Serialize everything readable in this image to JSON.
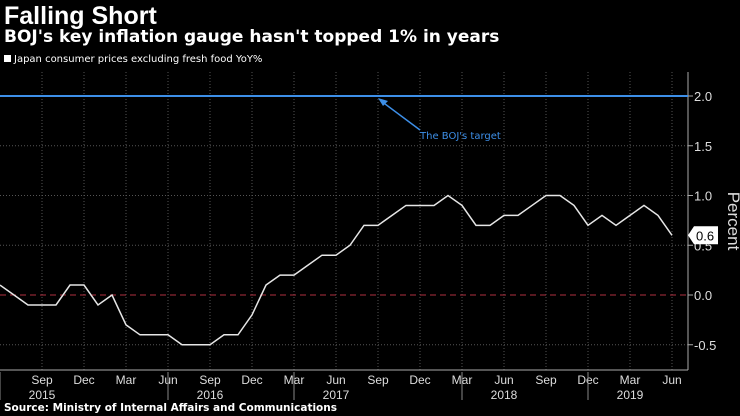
{
  "chart_data": {
    "type": "line",
    "title": "Falling Short",
    "subtitle": "BOJ's key inflation gauge hasn't topped 1% in years",
    "legend": [
      "Japan consumer prices excluding fresh food YoY%"
    ],
    "ylabel": "Percent",
    "ylim": [
      -0.75,
      2.2
    ],
    "yticks": [
      "2.0",
      "1.5",
      "1.0",
      "0.5",
      "0.0",
      "-0.5"
    ],
    "ytick_values": [
      2.0,
      1.5,
      1.0,
      0.5,
      0.0,
      -0.5
    ],
    "xtick_labels": [
      "Sep",
      "Dec",
      "Mar",
      "Jun",
      "Sep",
      "Dec",
      "Mar",
      "Jun",
      "Sep",
      "Dec",
      "Mar",
      "Jun",
      "Sep",
      "Dec",
      "Mar",
      "Jun"
    ],
    "xtick_index": [
      3,
      6,
      9,
      12,
      15,
      18,
      21,
      24,
      27,
      30,
      33,
      36,
      39,
      42,
      45,
      48
    ],
    "year_labels": [
      {
        "label": "2015",
        "index": 3
      },
      {
        "label": "2016",
        "index": 15
      },
      {
        "label": "2017",
        "index": 24
      },
      {
        "label": "2018",
        "index": 36
      },
      {
        "label": "2019",
        "index": 45
      }
    ],
    "x_start": "Jun 2015",
    "x_end": "Jun 2019",
    "values": [
      0.1,
      0.0,
      -0.1,
      -0.1,
      -0.1,
      0.1,
      0.1,
      -0.1,
      0.0,
      -0.3,
      -0.4,
      -0.4,
      -0.4,
      -0.5,
      -0.5,
      -0.5,
      -0.4,
      -0.4,
      -0.2,
      0.1,
      0.2,
      0.2,
      0.3,
      0.4,
      0.4,
      0.5,
      0.7,
      0.7,
      0.8,
      0.9,
      0.9,
      0.9,
      1.0,
      0.9,
      0.7,
      0.7,
      0.8,
      0.8,
      0.9,
      1.0,
      1.0,
      0.9,
      0.7,
      0.8,
      0.7,
      0.8,
      0.9,
      0.8,
      0.6
    ],
    "last_value_label": "0.6",
    "target": {
      "value": 2.0,
      "label": "The BOJ's target",
      "color": "#3d8fe8"
    },
    "line_color": "#e6e6e6",
    "zero_line_color": "#b03040"
  },
  "source": "Source: Ministry of Internal Affairs and Communications"
}
